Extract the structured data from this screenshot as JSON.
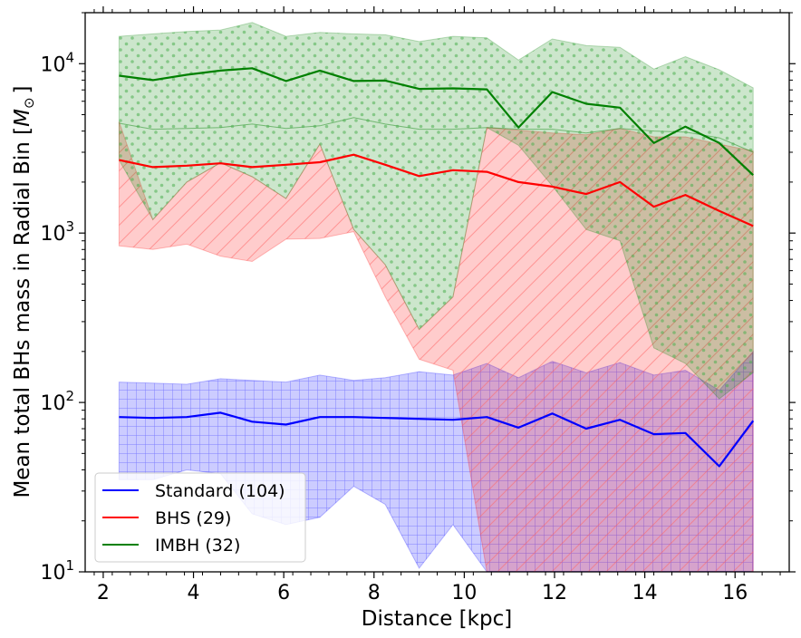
{
  "chart_data": {
    "type": "line",
    "title": "",
    "xlabel": "Distance [kpc]",
    "ylabel": "Mean total BHs mass in Radial Bin [",
    "ylabel_symbol": "M",
    "ylabel_subscript": "⊙",
    "ylabel_close": "]",
    "xscale": "linear",
    "yscale": "log",
    "xlim": [
      1.6,
      17.2
    ],
    "ylim": [
      10,
      20000
    ],
    "xticks": [
      2,
      4,
      6,
      8,
      10,
      12,
      14,
      16
    ],
    "xtick_labels": [
      "2",
      "4",
      "6",
      "8",
      "10",
      "12",
      "14",
      "16"
    ],
    "yticks": [
      10,
      100,
      1000,
      10000
    ],
    "ytick_labels": [
      {
        "base": "10",
        "exp": "1"
      },
      {
        "base": "10",
        "exp": "2"
      },
      {
        "base": "10",
        "exp": "3"
      },
      {
        "base": "10",
        "exp": "4"
      }
    ],
    "legend_position": "lower-left",
    "x": [
      2.35,
      3.1,
      3.85,
      4.6,
      5.3,
      6.05,
      6.8,
      7.55,
      8.25,
      9.0,
      9.75,
      10.5,
      11.2,
      11.95,
      12.7,
      13.45,
      14.2,
      14.9,
      15.65,
      16.4
    ],
    "series": [
      {
        "name": "Standard (104)",
        "legend_label": "Standard (104)",
        "color": "#0000ff",
        "fill_color": "#0000ff",
        "hatch": "grid",
        "mean": [
          82,
          81,
          82,
          87,
          77,
          74,
          82,
          82,
          81,
          80,
          79,
          82,
          71,
          86,
          70,
          79,
          65,
          66,
          42,
          78
        ],
        "upper": [
          132,
          130,
          128,
          138,
          135,
          132,
          145,
          135,
          140,
          152,
          145,
          170,
          140,
          175,
          150,
          172,
          145,
          155,
          118,
          200
        ],
        "lower": [
          35,
          35,
          40,
          38,
          22,
          19,
          21,
          32,
          25,
          10.5,
          19,
          10,
          10,
          10,
          10,
          10,
          10,
          10,
          10,
          10
        ]
      },
      {
        "name": "BHS (29)",
        "legend_label": "BHS (29)",
        "color": "#ff0000",
        "fill_color": "#ff0000",
        "hatch": "diagonal",
        "mean": [
          2700,
          2450,
          2500,
          2580,
          2450,
          2530,
          2620,
          2900,
          2530,
          2170,
          2350,
          2300,
          2000,
          1880,
          1700,
          2000,
          1430,
          1680,
          1350,
          1100
        ],
        "upper": [
          4550,
          1200,
          2000,
          2600,
          2150,
          1600,
          3350,
          1050,
          650,
          270,
          420,
          4200,
          4050,
          3900,
          3800,
          4150,
          3700,
          3700,
          3350,
          3050
        ],
        "lower": [
          840,
          800,
          860,
          730,
          680,
          920,
          930,
          1020,
          420,
          180,
          155,
          10,
          10,
          10,
          10,
          10,
          10,
          10,
          10,
          10
        ]
      },
      {
        "name": "IMBH (32)",
        "legend_label": "IMBH (32)",
        "color": "#008000",
        "fill_color": "#008000",
        "hatch": "dots",
        "mean": [
          8500,
          8000,
          8600,
          9100,
          9400,
          7900,
          9100,
          7900,
          7950,
          7100,
          7150,
          7050,
          4200,
          6800,
          5800,
          5500,
          3400,
          4250,
          3400,
          2200
        ],
        "upper": [
          14500,
          15000,
          15500,
          15800,
          17500,
          14500,
          15300,
          15000,
          14800,
          13500,
          14500,
          14200,
          10500,
          14000,
          12800,
          12500,
          9300,
          11000,
          9200,
          7200
        ],
        "lower": [
          4450,
          4100,
          4150,
          4200,
          4400,
          4150,
          4300,
          4800,
          4400,
          4100,
          4100,
          4200,
          4100,
          4100,
          3900,
          4150,
          4000,
          3950,
          3650,
          3000
        ],
        "lower_right": [
          2700,
          1200,
          2000,
          2600,
          2150,
          1600,
          3350,
          1050,
          650,
          270,
          420,
          4200,
          3300,
          1900,
          1050,
          900,
          210,
          170,
          105,
          150
        ]
      }
    ]
  }
}
